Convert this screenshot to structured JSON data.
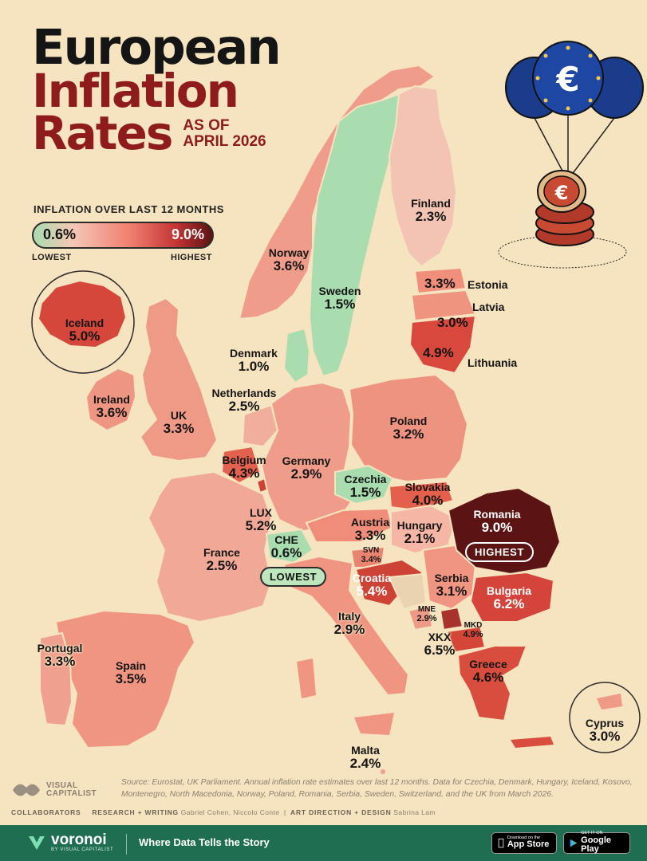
{
  "title": {
    "line1": "European",
    "line2": "Inflation",
    "line3": "Rates",
    "as_of_line1": "AS OF",
    "as_of_line2": "APRIL 2026"
  },
  "legend": {
    "title": "INFLATION OVER LAST 12 MONTHS",
    "min_value": "0.6%",
    "max_value": "9.0%",
    "min_label": "LOWEST",
    "max_label": "HIGHEST",
    "color_low": "#a9dcae",
    "color_high": "#5c1313"
  },
  "countries": {
    "finland": {
      "name": "Finland",
      "value": "2.3%"
    },
    "norway": {
      "name": "Norway",
      "value": "3.6%"
    },
    "sweden": {
      "name": "Sweden",
      "value": "1.5%"
    },
    "estonia": {
      "name": "Estonia",
      "value": "3.3%"
    },
    "latvia": {
      "name": "Latvia",
      "value": "3.0%"
    },
    "lithuania": {
      "name": "Lithuania",
      "value": "4.9%"
    },
    "iceland": {
      "name": "Iceland",
      "value": "5.0%"
    },
    "denmark": {
      "name": "Denmark",
      "value": "1.0%"
    },
    "netherlands": {
      "name": "Netherlands",
      "value": "2.5%"
    },
    "ireland": {
      "name": "Ireland",
      "value": "3.6%"
    },
    "uk": {
      "name": "UK",
      "value": "3.3%"
    },
    "poland": {
      "name": "Poland",
      "value": "3.2%"
    },
    "belgium": {
      "name": "Belgium",
      "value": "4.3%"
    },
    "germany": {
      "name": "Germany",
      "value": "2.9%"
    },
    "czechia": {
      "name": "Czechia",
      "value": "1.5%"
    },
    "slovakia": {
      "name": "Slovakia",
      "value": "4.0%"
    },
    "lux": {
      "name": "LUX",
      "value": "5.2%"
    },
    "romania": {
      "name": "Romania",
      "value": "9.0%",
      "tag": "HIGHEST"
    },
    "austria": {
      "name": "Austria",
      "value": "3.3%"
    },
    "hungary": {
      "name": "Hungary",
      "value": "2.1%"
    },
    "che": {
      "name": "CHE",
      "value": "0.6%",
      "tag": "LOWEST"
    },
    "svn": {
      "name": "SVN",
      "value": "3.4%"
    },
    "france": {
      "name": "France",
      "value": "2.5%"
    },
    "croatia": {
      "name": "Croatia",
      "value": "5.4%"
    },
    "serbia": {
      "name": "Serbia",
      "value": "3.1%"
    },
    "bulgaria": {
      "name": "Bulgaria",
      "value": "6.2%"
    },
    "mne": {
      "name": "MNE",
      "value": "2.9%"
    },
    "mkd": {
      "name": "MKD",
      "value": "4.9%"
    },
    "portugal": {
      "name": "Portugal",
      "value": "3.3%"
    },
    "italy": {
      "name": "Italy",
      "value": "2.9%"
    },
    "xkx": {
      "name": "XKX",
      "value": "6.5%"
    },
    "spain": {
      "name": "Spain",
      "value": "3.5%"
    },
    "greece": {
      "name": "Greece",
      "value": "4.6%"
    },
    "cyprus": {
      "name": "Cyprus",
      "value": "3.0%"
    },
    "malta": {
      "name": "Malta",
      "value": "2.4%"
    }
  },
  "illustration": {
    "currency_symbol": "€",
    "icon": "euro-balloons-coins"
  },
  "footer": {
    "source": "Source: Eurostat, UK Parliament. Annual inflation rate estimates over last 12 months. Data for Czechia, Denmark, Hungary, Iceland, Kosovo, Montenegro, North Macedonia, Norway, Poland, Romania, Serbia, Sweden, Switzerland, and the UK from March 2026.",
    "publisher_line1": "VISUAL",
    "publisher_line2": "CAPITALIST",
    "collaborators_label": "COLLABORATORS",
    "research_label": "RESEARCH + WRITING",
    "research_names": "Gabriel Cohen, Niccolo Conte",
    "design_label": "ART DIRECTION + DESIGN",
    "design_names": "Sabrina Lam",
    "brand": "voronoi",
    "brand_by": "BY VISUAL CAPITALIST",
    "tagline": "Where Data Tells the Story",
    "app_store_small": "Download on the",
    "app_store_big": "App Store",
    "google_play_small": "GET IT ON",
    "google_play_big": "Google Play"
  },
  "colors": {
    "background": "#f6e3bf",
    "title_red": "#8e1c1c",
    "footer_green": "#1f6e52"
  }
}
